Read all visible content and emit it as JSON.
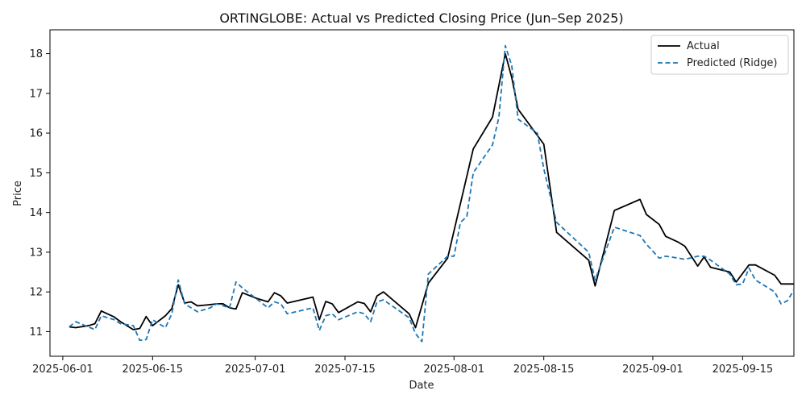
{
  "chart_data": {
    "type": "line",
    "title": "ORTINGLOBE: Actual vs Predicted Closing Price (Jun–Sep 2025)",
    "xlabel": "Date",
    "ylabel": "Price",
    "x_tick_labels": [
      "2025-06-01",
      "2025-06-15",
      "2025-07-01",
      "2025-07-15",
      "2025-08-01",
      "2025-08-15",
      "2025-09-01",
      "2025-09-15"
    ],
    "y_tick_labels": [
      "11",
      "12",
      "13",
      "14",
      "15",
      "16",
      "17",
      "18"
    ],
    "xlim": [
      "2025-05-30",
      "2025-09-23"
    ],
    "ylim": [
      10.38,
      18.6
    ],
    "grid": false,
    "legend_position": "top-right",
    "series": [
      {
        "name": "Actual",
        "color": "#000000",
        "style": "solid",
        "points": [
          [
            "2025-06-02",
            11.12
          ],
          [
            "2025-06-03",
            11.1
          ],
          [
            "2025-06-05",
            11.15
          ],
          [
            "2025-06-06",
            11.2
          ],
          [
            "2025-06-07",
            11.52
          ],
          [
            "2025-06-09",
            11.37
          ],
          [
            "2025-06-10",
            11.25
          ],
          [
            "2025-06-12",
            11.05
          ],
          [
            "2025-06-13",
            11.08
          ],
          [
            "2025-06-14",
            11.38
          ],
          [
            "2025-06-15",
            11.15
          ],
          [
            "2025-06-17",
            11.4
          ],
          [
            "2025-06-18",
            11.58
          ],
          [
            "2025-06-19",
            12.18
          ],
          [
            "2025-06-20",
            11.72
          ],
          [
            "2025-06-21",
            11.75
          ],
          [
            "2025-06-22",
            11.65
          ],
          [
            "2025-06-24",
            11.68
          ],
          [
            "2025-06-25",
            11.7
          ],
          [
            "2025-06-26",
            11.7
          ],
          [
            "2025-06-27",
            11.6
          ],
          [
            "2025-06-28",
            11.57
          ],
          [
            "2025-06-29",
            11.98
          ],
          [
            "2025-07-01",
            11.85
          ],
          [
            "2025-07-03",
            11.75
          ],
          [
            "2025-07-04",
            11.98
          ],
          [
            "2025-07-05",
            11.9
          ],
          [
            "2025-07-06",
            11.72
          ],
          [
            "2025-07-10",
            11.87
          ],
          [
            "2025-07-11",
            11.3
          ],
          [
            "2025-07-12",
            11.76
          ],
          [
            "2025-07-13",
            11.7
          ],
          [
            "2025-07-14",
            11.48
          ],
          [
            "2025-07-17",
            11.75
          ],
          [
            "2025-07-18",
            11.71
          ],
          [
            "2025-07-19",
            11.5
          ],
          [
            "2025-07-20",
            11.9
          ],
          [
            "2025-07-21",
            12.0
          ],
          [
            "2025-07-25",
            11.45
          ],
          [
            "2025-07-26",
            11.1
          ],
          [
            "2025-07-28",
            12.22
          ],
          [
            "2025-07-31",
            12.85
          ],
          [
            "2025-08-04",
            15.6
          ],
          [
            "2025-08-07",
            16.4
          ],
          [
            "2025-08-09",
            18.0
          ],
          [
            "2025-08-10",
            17.4
          ],
          [
            "2025-08-11",
            16.6
          ],
          [
            "2025-08-15",
            15.72
          ],
          [
            "2025-08-17",
            13.5
          ],
          [
            "2025-08-22",
            12.8
          ],
          [
            "2025-08-23",
            12.15
          ],
          [
            "2025-08-26",
            14.05
          ],
          [
            "2025-08-30",
            14.33
          ],
          [
            "2025-08-31",
            13.95
          ],
          [
            "2025-09-02",
            13.7
          ],
          [
            "2025-09-03",
            13.4
          ],
          [
            "2025-09-05",
            13.25
          ],
          [
            "2025-09-06",
            13.15
          ],
          [
            "2025-09-08",
            12.65
          ],
          [
            "2025-09-09",
            12.88
          ],
          [
            "2025-09-10",
            12.62
          ],
          [
            "2025-09-13",
            12.5
          ],
          [
            "2025-09-14",
            12.25
          ],
          [
            "2025-09-16",
            12.68
          ],
          [
            "2025-09-17",
            12.68
          ],
          [
            "2025-09-20",
            12.42
          ],
          [
            "2025-09-21",
            12.2
          ],
          [
            "2025-09-23",
            12.2
          ]
        ]
      },
      {
        "name": "Predicted (Ridge)",
        "color": "#1f77b4",
        "style": "dashed",
        "points": [
          [
            "2025-06-02",
            11.12
          ],
          [
            "2025-06-03",
            11.25
          ],
          [
            "2025-06-05",
            11.12
          ],
          [
            "2025-06-06",
            11.05
          ],
          [
            "2025-06-07",
            11.4
          ],
          [
            "2025-06-09",
            11.3
          ],
          [
            "2025-06-10",
            11.2
          ],
          [
            "2025-06-12",
            11.15
          ],
          [
            "2025-06-13",
            10.78
          ],
          [
            "2025-06-14",
            10.8
          ],
          [
            "2025-06-15",
            11.3
          ],
          [
            "2025-06-17",
            11.1
          ],
          [
            "2025-06-18",
            11.45
          ],
          [
            "2025-06-19",
            12.3
          ],
          [
            "2025-06-20",
            11.7
          ],
          [
            "2025-06-21",
            11.6
          ],
          [
            "2025-06-22",
            11.5
          ],
          [
            "2025-06-24",
            11.6
          ],
          [
            "2025-06-25",
            11.7
          ],
          [
            "2025-06-26",
            11.65
          ],
          [
            "2025-06-27",
            11.6
          ],
          [
            "2025-06-28",
            12.25
          ],
          [
            "2025-06-29",
            12.1
          ],
          [
            "2025-07-01",
            11.85
          ],
          [
            "2025-07-03",
            11.6
          ],
          [
            "2025-07-04",
            11.75
          ],
          [
            "2025-07-05",
            11.7
          ],
          [
            "2025-07-06",
            11.45
          ],
          [
            "2025-07-10",
            11.6
          ],
          [
            "2025-07-11",
            11.03
          ],
          [
            "2025-07-12",
            11.4
          ],
          [
            "2025-07-13",
            11.45
          ],
          [
            "2025-07-14",
            11.3
          ],
          [
            "2025-07-17",
            11.5
          ],
          [
            "2025-07-18",
            11.45
          ],
          [
            "2025-07-19",
            11.25
          ],
          [
            "2025-07-20",
            11.75
          ],
          [
            "2025-07-21",
            11.8
          ],
          [
            "2025-07-25",
            11.35
          ],
          [
            "2025-07-26",
            10.95
          ],
          [
            "2025-07-27",
            10.75
          ],
          [
            "2025-07-28",
            12.45
          ],
          [
            "2025-07-31",
            12.9
          ],
          [
            "2025-08-01",
            12.9
          ],
          [
            "2025-08-02",
            13.75
          ],
          [
            "2025-08-03",
            13.9
          ],
          [
            "2025-08-04",
            15.0
          ],
          [
            "2025-08-07",
            15.7
          ],
          [
            "2025-08-08",
            16.4
          ],
          [
            "2025-08-09",
            18.2
          ],
          [
            "2025-08-10",
            17.7
          ],
          [
            "2025-08-11",
            16.35
          ],
          [
            "2025-08-14",
            16.0
          ],
          [
            "2025-08-15",
            15.1
          ],
          [
            "2025-08-17",
            13.75
          ],
          [
            "2025-08-22",
            13.0
          ],
          [
            "2025-08-23",
            12.3
          ],
          [
            "2025-08-26",
            13.63
          ],
          [
            "2025-08-30",
            13.42
          ],
          [
            "2025-08-31",
            13.2
          ],
          [
            "2025-09-02",
            12.85
          ],
          [
            "2025-09-03",
            12.9
          ],
          [
            "2025-09-05",
            12.85
          ],
          [
            "2025-09-06",
            12.82
          ],
          [
            "2025-09-08",
            12.9
          ],
          [
            "2025-09-09",
            12.9
          ],
          [
            "2025-09-10",
            12.8
          ],
          [
            "2025-09-13",
            12.45
          ],
          [
            "2025-09-14",
            12.18
          ],
          [
            "2025-09-15",
            12.2
          ],
          [
            "2025-09-16",
            12.6
          ],
          [
            "2025-09-17",
            12.3
          ],
          [
            "2025-09-20",
            12.0
          ],
          [
            "2025-09-21",
            11.7
          ],
          [
            "2025-09-22",
            11.78
          ],
          [
            "2025-09-23",
            12.05
          ]
        ]
      }
    ]
  }
}
